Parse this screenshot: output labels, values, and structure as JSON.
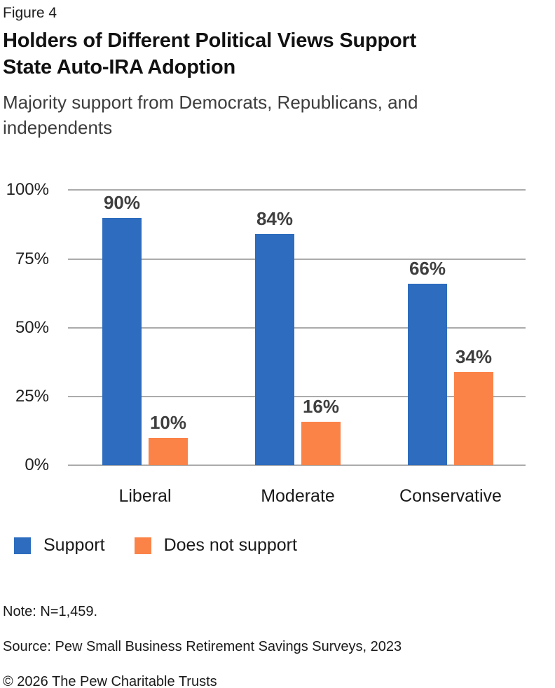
{
  "header": {
    "figure_label": "Figure 4",
    "title_line1": "Holders of Different Political Views Support",
    "title_line2": "State Auto-IRA Adoption",
    "subtitle_line1": "Majority support from Democrats, Republicans, and",
    "subtitle_line2": "independents"
  },
  "chart_data": {
    "type": "bar",
    "title": "Holders of Different Political Views Support State Auto-IRA Adoption",
    "subtitle": "Majority support from Democrats, Republicans, and independents",
    "categories": [
      "Liberal",
      "Moderate",
      "Conservative"
    ],
    "series": [
      {
        "name": "Support",
        "color": "#2D6CBE",
        "values": [
          90,
          84,
          66
        ],
        "labels": [
          "90%",
          "84%",
          "66%"
        ]
      },
      {
        "name": "Does not support",
        "color": "#FB8348",
        "values": [
          10,
          16,
          34
        ],
        "labels": [
          "10%",
          "16%",
          "34%"
        ]
      }
    ],
    "y_ticks": [
      "100%",
      "75%",
      "50%",
      "25%",
      "0%"
    ],
    "xlabel": "",
    "ylabel": "",
    "ylim": [
      0,
      100
    ],
    "grid": true,
    "gridline_color": "#ABABAB",
    "legend_position": "bottom"
  },
  "legend": {
    "items": [
      {
        "label": "Support",
        "color": "#2D6CBE"
      },
      {
        "label": "Does not support",
        "color": "#FB8348"
      }
    ]
  },
  "footer": {
    "note": "Note: N=1,459.",
    "source": "Source: Pew Small Business Retirement Savings Surveys, 2023",
    "copyright": "© 2026 The Pew Charitable Trusts"
  }
}
